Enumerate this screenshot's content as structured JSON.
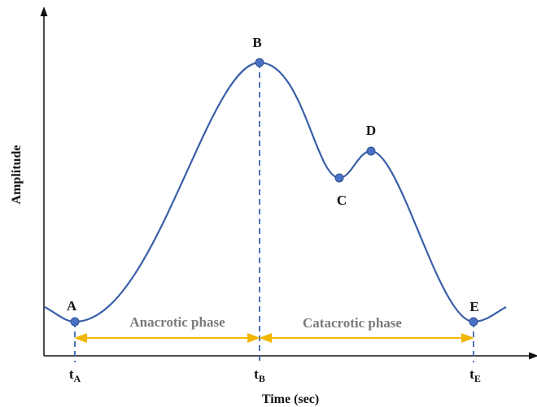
{
  "axes": {
    "x_label": "Time (sec)",
    "y_label": "Amplitude"
  },
  "points": [
    {
      "label": "A"
    },
    {
      "label": "B"
    },
    {
      "label": "C"
    },
    {
      "label": "D"
    },
    {
      "label": "E"
    }
  ],
  "phases": [
    {
      "label": "Anacrotic phase"
    },
    {
      "label": "Catacrotic phase"
    }
  ],
  "time_marks": [
    {
      "base": "t",
      "sub": "A"
    },
    {
      "base": "t",
      "sub": "B"
    },
    {
      "base": "t",
      "sub": "E"
    }
  ]
}
